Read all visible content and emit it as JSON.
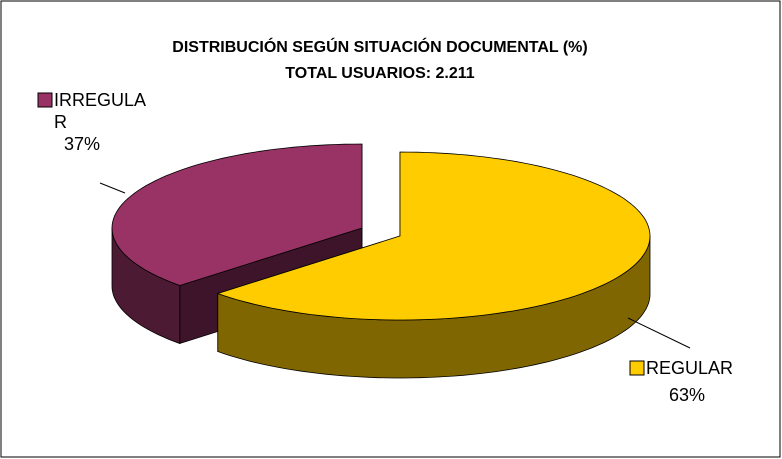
{
  "chart_data": {
    "type": "pie3d",
    "title": "DISTRIBUCIÓN SEGÚN SITUACIÓN DOCUMENTAL (%)",
    "subtitle": "TOTAL USUARIOS: 2.211",
    "categories": [
      "IRREGULAR",
      "REGULAR"
    ],
    "values": [
      37,
      63
    ],
    "value_labels": [
      "37%",
      "63%"
    ],
    "colors": [
      "#993366",
      "#ffcc00"
    ]
  }
}
